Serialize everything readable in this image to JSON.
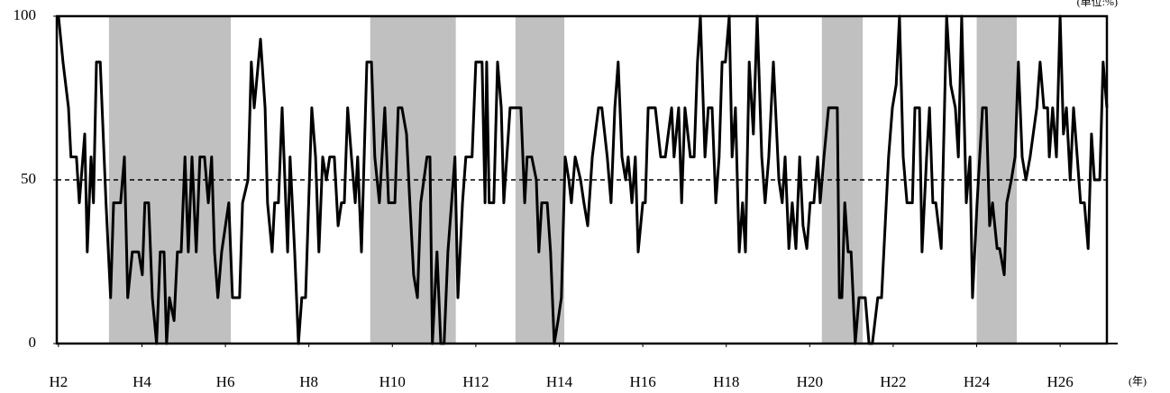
{
  "chart_data": {
    "type": "line",
    "unit_label": "(単位:%)",
    "x_unit_label": "(年)",
    "x": [
      2.0,
      2.11,
      2.24,
      2.3,
      2.43,
      2.5,
      2.63,
      2.69,
      2.78,
      2.84,
      2.91,
      3.0,
      3.14,
      3.25,
      3.32,
      3.49,
      3.58,
      3.66,
      3.77,
      3.92,
      4.01,
      4.07,
      4.16,
      4.25,
      4.35,
      4.44,
      4.53,
      4.59,
      4.66,
      4.77,
      4.85,
      4.94,
      5.03,
      5.11,
      5.2,
      5.3,
      5.39,
      5.5,
      5.59,
      5.67,
      5.74,
      5.82,
      5.91,
      6.08,
      6.17,
      6.34,
      6.41,
      6.54,
      6.62,
      6.69,
      6.84,
      6.95,
      7.01,
      7.12,
      7.18,
      7.27,
      7.36,
      7.49,
      7.55,
      7.66,
      7.75,
      7.83,
      7.92,
      8.07,
      8.16,
      8.24,
      8.33,
      8.42,
      8.5,
      8.61,
      8.7,
      8.78,
      8.85,
      8.93,
      9.02,
      9.11,
      9.17,
      9.26,
      9.39,
      9.5,
      9.58,
      9.69,
      9.82,
      9.91,
      10.06,
      10.14,
      10.23,
      10.34,
      10.42,
      10.51,
      10.6,
      10.68,
      10.83,
      10.9,
      10.96,
      11.07,
      11.16,
      11.24,
      11.33,
      11.42,
      11.5,
      11.57,
      11.68,
      11.76,
      11.91,
      12.0,
      12.15,
      12.22,
      12.26,
      12.32,
      12.43,
      12.52,
      12.61,
      12.67,
      12.82,
      12.91,
      13.08,
      13.17,
      13.23,
      13.34,
      13.45,
      13.51,
      13.58,
      13.71,
      13.79,
      13.88,
      13.97,
      14.05,
      14.14,
      14.23,
      14.29,
      14.38,
      14.51,
      14.59,
      14.68,
      14.79,
      14.94,
      15.02,
      15.15,
      15.24,
      15.33,
      15.41,
      15.5,
      15.59,
      15.65,
      15.74,
      15.82,
      15.89,
      16.0,
      16.06,
      16.13,
      16.3,
      16.43,
      16.54,
      16.69,
      16.75,
      16.86,
      16.93,
      17.01,
      17.14,
      17.23,
      17.31,
      17.38,
      17.49,
      17.57,
      17.66,
      17.75,
      17.83,
      17.9,
      17.98,
      18.07,
      18.14,
      18.22,
      18.31,
      18.39,
      18.46,
      18.55,
      18.65,
      18.74,
      18.85,
      18.93,
      19.02,
      19.13,
      19.26,
      19.34,
      19.41,
      19.5,
      19.58,
      19.67,
      19.76,
      19.84,
      19.93,
      20.01,
      20.1,
      20.19,
      20.25,
      20.34,
      20.45,
      20.6,
      20.66,
      20.71,
      20.77,
      20.84,
      20.92,
      20.99,
      21.09,
      21.18,
      21.33,
      21.42,
      21.5,
      21.63,
      21.72,
      21.89,
      21.98,
      22.07,
      22.15,
      22.24,
      22.33,
      22.46,
      22.52,
      22.63,
      22.69,
      22.8,
      22.87,
      22.95,
      23.02,
      23.15,
      23.28,
      23.38,
      23.49,
      23.56,
      23.64,
      23.75,
      23.84,
      23.9,
      24.01,
      24.14,
      24.23,
      24.31,
      24.38,
      24.49,
      24.55,
      24.66,
      24.72,
      24.83,
      24.92,
      25.0,
      25.09,
      25.18,
      25.28,
      25.44,
      25.52,
      25.61,
      25.7,
      25.74,
      25.82,
      25.91,
      26.0,
      26.08,
      26.15,
      26.24,
      26.32,
      26.41,
      26.49,
      26.58,
      26.67,
      26.75,
      26.82,
      26.95,
      27.03,
      27.12
    ],
    "series": [
      {
        "color": "#000000",
        "values": [
          100,
          86,
          72,
          57,
          57,
          43,
          64,
          28,
          57,
          43,
          86,
          86,
          43,
          14,
          43,
          43,
          57,
          14,
          28,
          28,
          21,
          43,
          43,
          14,
          0,
          28,
          28,
          0,
          14,
          7,
          28,
          28,
          57,
          28,
          57,
          28,
          57,
          57,
          43,
          57,
          28,
          14,
          28,
          43,
          14,
          14,
          43,
          50,
          86,
          72,
          93,
          72,
          43,
          28,
          43,
          43,
          72,
          28,
          57,
          28,
          0,
          14,
          14,
          72,
          57,
          28,
          57,
          50,
          57,
          57,
          36,
          43,
          43,
          72,
          57,
          43,
          57,
          28,
          86,
          86,
          57,
          43,
          72,
          43,
          43,
          72,
          72,
          64,
          43,
          21,
          14,
          43,
          57,
          57,
          0,
          28,
          0,
          0,
          28,
          43,
          57,
          14,
          43,
          57,
          57,
          86,
          86,
          43,
          86,
          43,
          43,
          86,
          72,
          43,
          72,
          72,
          72,
          43,
          57,
          57,
          50,
          28,
          43,
          43,
          28,
          0,
          7,
          14,
          57,
          50,
          43,
          57,
          50,
          43,
          36,
          57,
          72,
          72,
          57,
          43,
          72,
          86,
          57,
          50,
          57,
          43,
          57,
          28,
          43,
          43,
          72,
          72,
          57,
          57,
          72,
          57,
          72,
          43,
          72,
          57,
          57,
          86,
          100,
          57,
          72,
          72,
          43,
          57,
          86,
          86,
          100,
          57,
          72,
          28,
          43,
          28,
          86,
          64,
          100,
          57,
          43,
          57,
          86,
          50,
          43,
          57,
          29,
          43,
          29,
          57,
          36,
          29,
          43,
          43,
          57,
          43,
          57,
          72,
          72,
          72,
          14,
          14,
          43,
          28,
          28,
          0,
          14,
          14,
          0,
          0,
          14,
          14,
          57,
          72,
          79,
          100,
          57,
          43,
          43,
          72,
          72,
          28,
          57,
          72,
          43,
          43,
          29,
          100,
          79,
          72,
          57,
          100,
          43,
          57,
          14,
          43,
          72,
          72,
          36,
          43,
          29,
          29,
          21,
          43,
          50,
          57,
          86,
          57,
          50,
          57,
          72,
          86,
          72,
          72,
          57,
          72,
          57,
          100,
          64,
          72,
          50,
          72,
          57,
          43,
          43,
          29,
          64,
          50,
          50,
          86,
          72
        ]
      }
    ],
    "shaded_ranges": [
      [
        3.21,
        6.13
      ],
      [
        9.47,
        11.52
      ],
      [
        12.95,
        14.12
      ],
      [
        20.29,
        21.27
      ],
      [
        24.0,
        24.96
      ]
    ],
    "shade_color": "#c0c0c0",
    "reference_line": 50,
    "xlim": [
      1.96,
      27.12
    ],
    "xticks": [
      {
        "value": 2,
        "label": "H2"
      },
      {
        "value": 4,
        "label": "H4"
      },
      {
        "value": 6,
        "label": "H6"
      },
      {
        "value": 8,
        "label": "H8"
      },
      {
        "value": 10,
        "label": "H10"
      },
      {
        "value": 12,
        "label": "H12"
      },
      {
        "value": 14,
        "label": "H14"
      },
      {
        "value": 16,
        "label": "H16"
      },
      {
        "value": 18,
        "label": "H18"
      },
      {
        "value": 20,
        "label": "H20"
      },
      {
        "value": 22,
        "label": "H22"
      },
      {
        "value": 24,
        "label": "H24"
      },
      {
        "value": 26,
        "label": "H26"
      }
    ],
    "ylim": [
      0,
      100
    ],
    "yticks": [
      0,
      50,
      100
    ]
  }
}
